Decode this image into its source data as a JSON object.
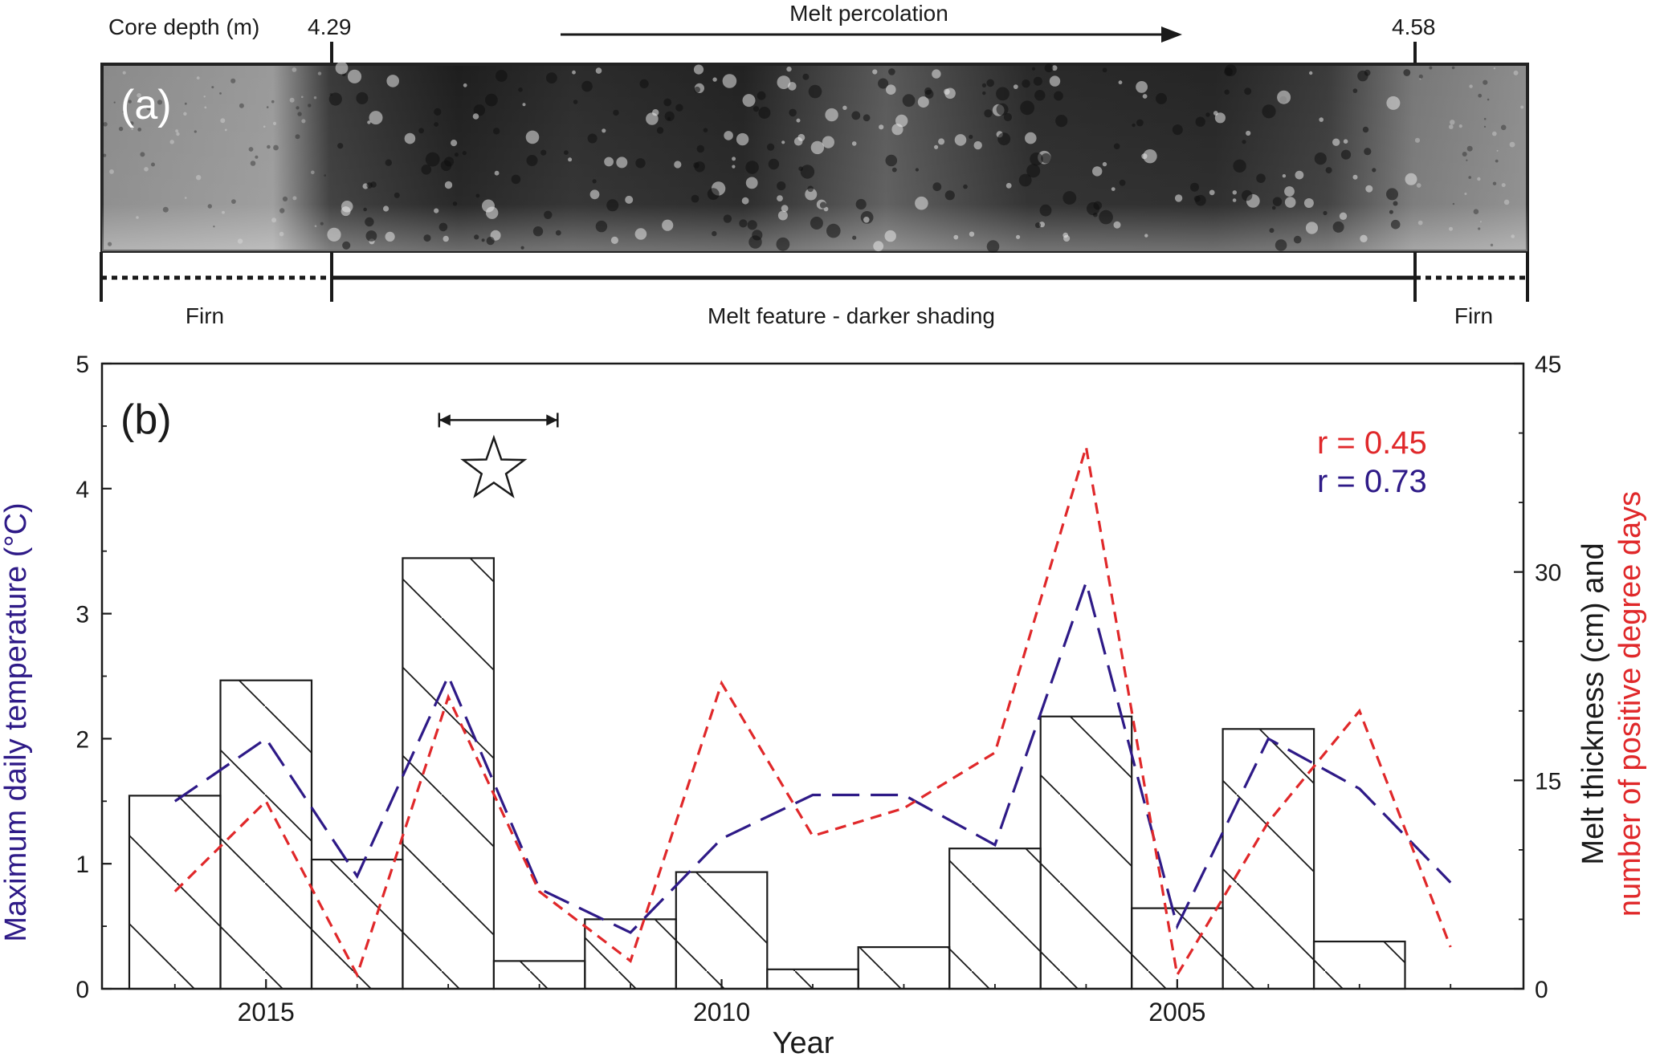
{
  "panel_a": {
    "label": "(a)",
    "depth_label": "Core depth (m)",
    "depth_start": "4.29",
    "depth_end": "4.58",
    "arrow_label": "Melt percolation",
    "firn_left": "Firn",
    "firn_right": "Firn",
    "melt_label": "Melt feature - darker shading"
  },
  "panel_b": {
    "label": "(b)",
    "r_red": "r = 0.45",
    "r_blue": "r = 0.73"
  },
  "colors": {
    "blue": "#2e1a87",
    "red": "#e0282a",
    "black": "#1a1a1a"
  },
  "chart_data": {
    "type": "bar",
    "xlabel": "Year",
    "ylabel_left": "Maximum daily temperature (°C)",
    "ylabel_right_part1": "Melt thickness (cm) and",
    "ylabel_right_part2": "number of positive degree days",
    "xlim": [
      2016.8,
      2001.2
    ],
    "ylim_left": [
      0,
      5
    ],
    "ylim_right": [
      0,
      45
    ],
    "xticks": [
      2015,
      2010,
      2005
    ],
    "yticks_left": [
      0,
      1,
      2,
      3,
      4,
      5
    ],
    "yticks_right": [
      0,
      15,
      30,
      45
    ],
    "star_year": 2012.5,
    "star_range": [
      2013.1,
      2011.8
    ],
    "star_value": 4.15,
    "melt_thickness": {
      "years": [
        2016,
        2015,
        2014,
        2013,
        2012,
        2011,
        2010,
        2009,
        2008,
        2007,
        2006,
        2005,
        2004,
        2003
      ],
      "values": [
        13.9,
        22.2,
        9.3,
        31.0,
        2.0,
        5.0,
        8.4,
        1.4,
        3.0,
        10.1,
        19.6,
        5.8,
        18.7,
        3.4
      ]
    },
    "series": [
      {
        "name": "Maximum daily temperature",
        "axis": "left",
        "years": [
          2016,
          2015,
          2014,
          2013,
          2012,
          2011,
          2010,
          2009,
          2008,
          2007,
          2006,
          2005,
          2004,
          2003,
          2002
        ],
        "values": [
          1.5,
          2.0,
          0.9,
          2.5,
          0.8,
          0.45,
          1.2,
          1.55,
          1.55,
          1.15,
          3.25,
          0.5,
          2.0,
          1.6,
          0.85
        ]
      },
      {
        "name": "Number of positive degree days",
        "axis": "right",
        "years": [
          2016,
          2015,
          2014,
          2013,
          2012,
          2011,
          2010,
          2009,
          2008,
          2007,
          2006,
          2005,
          2004,
          2003,
          2002
        ],
        "values": [
          7,
          13.5,
          1,
          21,
          7,
          2,
          22,
          11,
          13,
          17,
          39,
          1,
          12,
          20,
          3
        ]
      }
    ]
  }
}
